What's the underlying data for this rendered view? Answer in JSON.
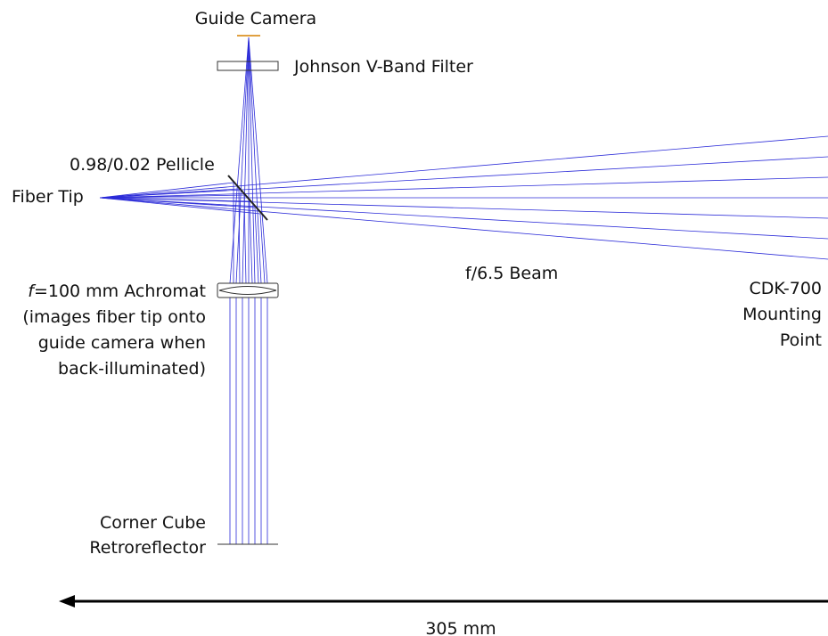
{
  "labels": {
    "guide_camera": "Guide Camera",
    "filter": "Johnson V-Band Filter",
    "pellicle": "0.98/0.02 Pellicle",
    "fiber_tip": "Fiber Tip",
    "beam": "f/6.5 Beam",
    "mount_line1": "CDK-700",
    "mount_line2": "Mounting",
    "mount_line3": "Point",
    "achromat_f": "f",
    "achromat_rest": "=100 mm Achromat",
    "achromat_line2": "(images fiber tip onto",
    "achromat_line3": "guide camera when",
    "achromat_line4": "back-illuminated)",
    "retro_line1": "Corner Cube",
    "retro_line2": "Retroreflector",
    "scale": "305 mm"
  },
  "colors": {
    "rays": "#2b2bd8",
    "optics": "#333333",
    "camera": "#e0a040",
    "arrow": "#000000"
  }
}
